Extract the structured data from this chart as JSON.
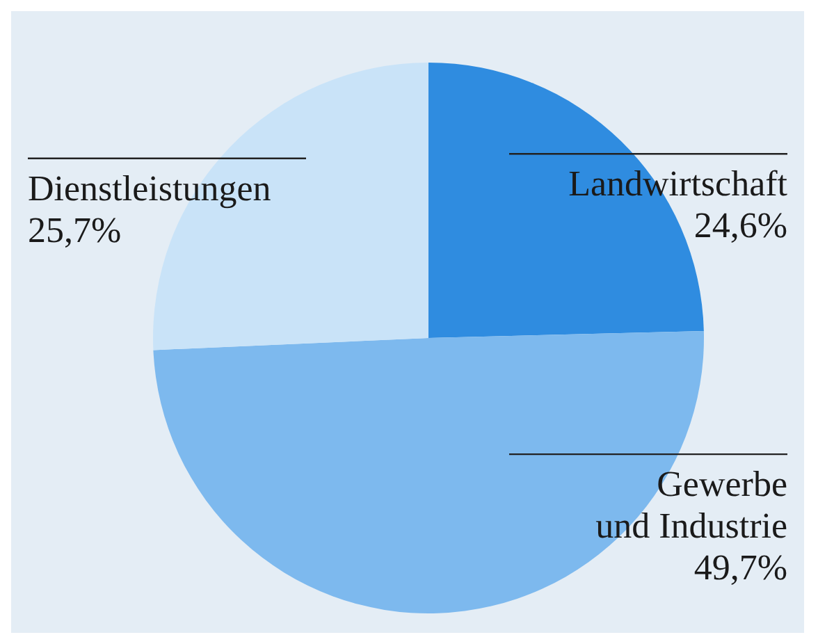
{
  "chart_data": {
    "type": "pie",
    "categories": [
      "Landwirtschaft",
      "Gewerbe\nund Industrie",
      "Dienstleistungen"
    ],
    "values": [
      24.6,
      49.7,
      25.7
    ],
    "colors": [
      "#2f8ce0",
      "#7db9ee",
      "#c9e3f8"
    ],
    "value_labels": [
      "24,6%",
      "49,7%",
      "25,7%"
    ]
  }
}
